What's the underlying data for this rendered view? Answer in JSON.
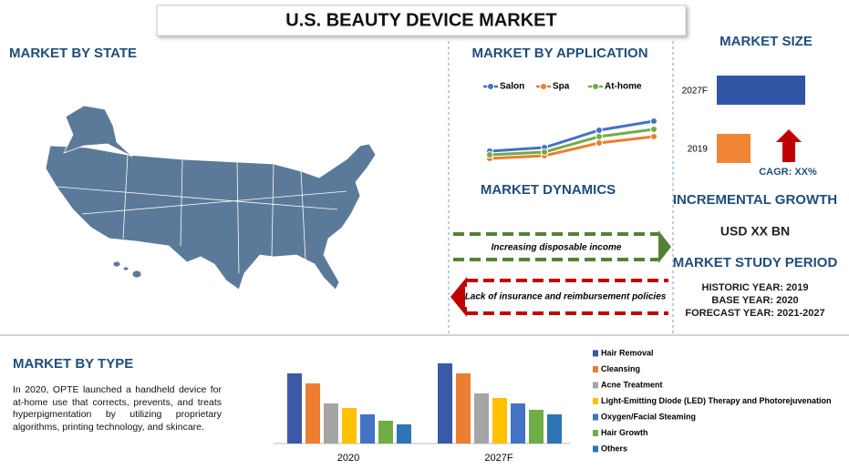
{
  "title": "U.S. BEAUTY DEVICE MARKET",
  "state_section": {
    "title": "MARKET BY STATE"
  },
  "application_section": {
    "title": "MARKET BY APPLICATION"
  },
  "dynamics": {
    "title": "MARKET DYNAMICS",
    "driver": "Increasing disposable income",
    "restraint": "Lack of insurance and reimbursement policies"
  },
  "size_section": {
    "title": "MARKET SIZE",
    "cagr": "CAGR: XX%"
  },
  "growth": {
    "title": "INCREMENTAL GROWTH",
    "value": "USD XX BN"
  },
  "study_period": {
    "title": "MARKET STUDY PERIOD",
    "lines": [
      "HISTORIC YEAR: 2019",
      "BASE YEAR: 2020",
      "FORECAST YEAR: 2021-2027"
    ]
  },
  "type_section": {
    "title": "MARKET BY TYPE",
    "text": "In 2020, OPTE launched a handheld device for at-home use that corrects, prevents, and treats hyperpigmentation by utilizing proprietary algorithms, printing technology, and skincare."
  },
  "chart_data": [
    {
      "type": "line",
      "categories": [
        null,
        null,
        null,
        null
      ],
      "series": [
        {
          "name": "Salon",
          "color": "#4472c4",
          "values": [
            34,
            38,
            57,
            67
          ]
        },
        {
          "name": "Spa",
          "color": "#ed7d31",
          "values": [
            26,
            29,
            43,
            50
          ]
        },
        {
          "name": "At-home",
          "color": "#70ad47",
          "values": [
            30,
            33,
            50,
            58
          ]
        }
      ]
    },
    {
      "type": "hbar",
      "categories": [
        "2027F",
        "2019"
      ],
      "values": [
        97,
        37
      ],
      "colors": [
        "#2f55a4",
        "#f08536"
      ]
    },
    {
      "type": "bar",
      "categories": [
        "2020",
        "2027F"
      ],
      "series": [
        {
          "name": "Hair Removal",
          "color": "#3a5aa8",
          "values": [
            77,
            88
          ]
        },
        {
          "name": "Cleansing",
          "color": "#ed7d31",
          "values": [
            66,
            77
          ]
        },
        {
          "name": "Acne Treatment",
          "color": "#a5a5a5",
          "values": [
            44,
            55
          ]
        },
        {
          "name": "Light-Emitting Diode (LED) Therapy and Photorejuvenation",
          "color": "#ffc000",
          "values": [
            39,
            50
          ]
        },
        {
          "name": "Oxygen/Facial Steaming",
          "color": "#4472c4",
          "values": [
            32,
            44
          ]
        },
        {
          "name": "Hair Growth",
          "color": "#70ad47",
          "values": [
            25,
            37
          ]
        },
        {
          "name": "Others",
          "color": "#2e75b6",
          "values": [
            21,
            32
          ]
        }
      ]
    }
  ]
}
